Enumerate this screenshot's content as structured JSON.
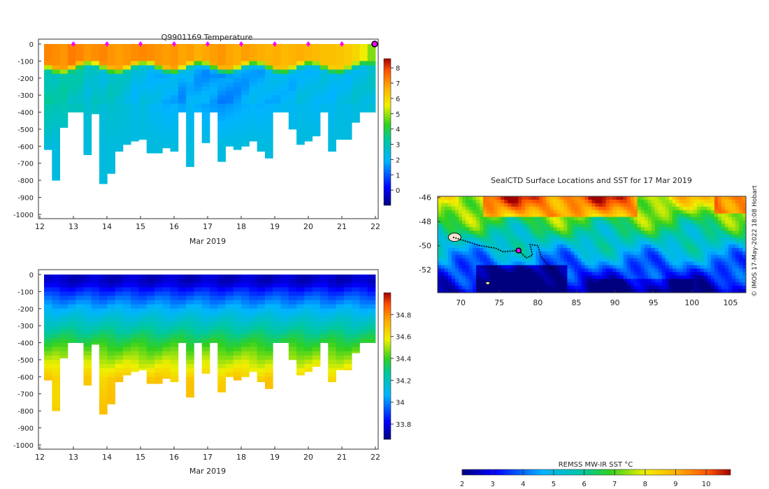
{
  "chart_data": [
    {
      "type": "heatmap",
      "title": "Q9901169  Temperature",
      "xlabel": "Mar 2019",
      "ylabel": "",
      "x_ticks": [
        "12",
        "13",
        "14",
        "15",
        "16",
        "17",
        "18",
        "19",
        "20",
        "21",
        "22"
      ],
      "y_ticks": [
        "0",
        "-100",
        "-200",
        "-300",
        "-400",
        "-500",
        "-600",
        "-700",
        "-800",
        "-900",
        "-1000"
      ],
      "xlim": [
        12,
        22
      ],
      "ylim": [
        -1025,
        0
      ],
      "colorbar": {
        "min": -1,
        "max": 8.6,
        "ticks": [
          "0",
          "1",
          "2",
          "3",
          "4",
          "5",
          "6",
          "7",
          "8"
        ]
      },
      "profile_day_markers": [
        13,
        14,
        15,
        16,
        17,
        18,
        19,
        20,
        21
      ],
      "profile_max_depths": [
        -620,
        -800,
        -490,
        -400,
        -400,
        -650,
        -410,
        -820,
        -760,
        -630,
        -590,
        -570,
        -560,
        -640,
        -640,
        -610,
        -630,
        -400,
        -720,
        -400,
        -580,
        -400,
        -690,
        -600,
        -620,
        -600,
        -570,
        -630,
        -670,
        -400,
        -400,
        -500,
        -590,
        -570,
        -540,
        -400,
        -630,
        -560,
        -560,
        -460,
        -400,
        -400
      ],
      "surface_temps": [
        7.2,
        7.1,
        7.0,
        7.3,
        7.2,
        7.0,
        7.1,
        7.2,
        7.0,
        6.9,
        7.0,
        7.1,
        7.2,
        7.1,
        7.0,
        6.9,
        7.0,
        6.8,
        6.9,
        6.7,
        6.8,
        6.9,
        7.0,
        6.8,
        6.7,
        6.9,
        6.8,
        6.7,
        6.6,
        6.7,
        6.5,
        6.6,
        6.7,
        6.6,
        6.5,
        6.4,
        6.4,
        6.3,
        6.2,
        6.0,
        5.6,
        4.8
      ],
      "deep_temps": [
        3.2,
        3.0,
        3.1,
        2.9,
        3.0,
        2.6,
        2.8,
        2.5,
        2.7,
        2.6,
        2.5,
        2.2,
        2.4,
        2.1,
        2.0,
        1.8,
        1.9,
        1.7,
        2.0,
        1.8,
        1.7,
        1.6,
        1.5,
        1.6,
        1.7,
        1.8,
        1.9,
        1.8,
        1.9,
        2.0,
        2.1,
        2.0,
        2.2,
        2.1,
        2.0,
        2.2,
        2.1,
        2.3,
        2.2,
        2.4,
        2.3,
        2.5
      ]
    },
    {
      "type": "heatmap",
      "title": "",
      "xlabel": "Mar 2019",
      "ylabel": "",
      "x_ticks": [
        "12",
        "13",
        "14",
        "15",
        "16",
        "17",
        "18",
        "19",
        "20",
        "21",
        "22"
      ],
      "y_ticks": [
        "0",
        "-100",
        "-200",
        "-300",
        "-400",
        "-500",
        "-600",
        "-700",
        "-800",
        "-900",
        "-1000"
      ],
      "xlim": [
        12,
        22
      ],
      "ylim": [
        -1025,
        0
      ],
      "colorbar": {
        "min": 33.66,
        "max": 35.0,
        "ticks": [
          "33.8",
          "34",
          "34.2",
          "34.4",
          "34.6",
          "34.8"
        ]
      },
      "surface_salinity": 33.75,
      "deep_salinity": 34.66
    },
    {
      "type": "heatmap",
      "title": "SealCTD Surface Locations and SST for 17 Mar 2019",
      "xlabel": "",
      "ylabel": "",
      "x_ticks": [
        "70",
        "75",
        "80",
        "85",
        "90",
        "95",
        "100",
        "105"
      ],
      "y_ticks": [
        "-46",
        "-48",
        "-50",
        "-52"
      ],
      "xlim": [
        67,
        107
      ],
      "ylim": [
        -53.9,
        -45.9
      ],
      "side_label": "© IMOS 17-May-2022 18:08 Hobart",
      "colorbar": {
        "label": "REMSS MW-IR SST °C",
        "min": 2,
        "max": 10.8,
        "ticks": [
          "2",
          "3",
          "4",
          "5",
          "6",
          "7",
          "8",
          "9",
          "10"
        ]
      },
      "track": [
        [
          69.0,
          -49.3
        ],
        [
          70.5,
          -49.6
        ],
        [
          72.5,
          -50.0
        ],
        [
          74.5,
          -50.2
        ],
        [
          75.5,
          -50.5
        ],
        [
          77.5,
          -50.4
        ],
        [
          78.5,
          -51.0
        ],
        [
          79.3,
          -50.8
        ],
        [
          79.0,
          -49.9
        ],
        [
          80.0,
          -50.0
        ],
        [
          80.5,
          -51.0
        ],
        [
          81.2,
          -51.5
        ],
        [
          82.0,
          -52.0
        ]
      ],
      "current_position": [
        77.5,
        -50.4
      ]
    }
  ]
}
